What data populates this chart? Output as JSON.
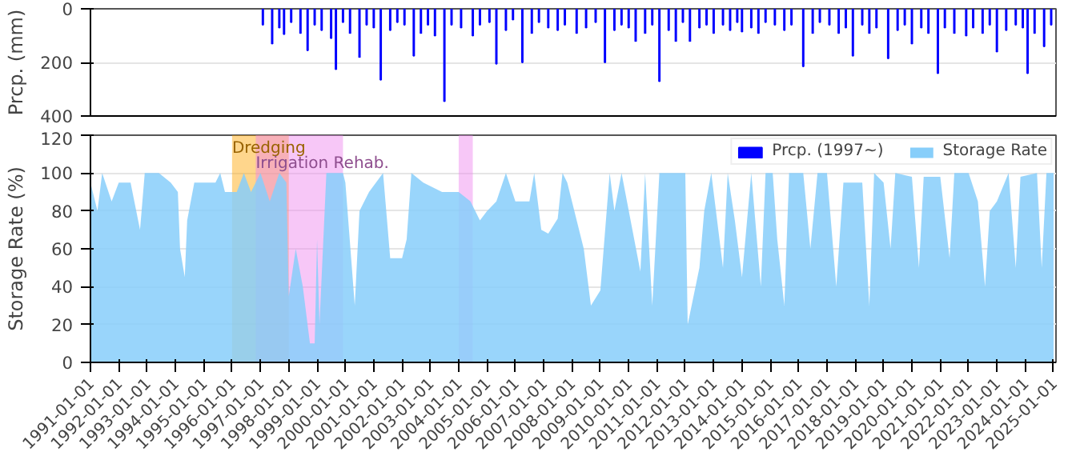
{
  "chart_data": [
    {
      "type": "bar",
      "ylabel": "Prcp. (mm)",
      "ylim": [
        400,
        0
      ],
      "yticks": [
        0,
        200,
        400
      ],
      "grid": "y",
      "tick_labels": "y",
      "xlim": [
        "1991-01-01",
        "2025-02-01"
      ],
      "series": [
        {
          "name": "Prcp. (1997~)",
          "color": "#0000ff",
          "x": [
            "1997-02",
            "1997-06",
            "1997-09",
            "1997-11",
            "1998-02",
            "1998-06",
            "1998-09",
            "1998-12",
            "1999-03",
            "1999-07",
            "1999-09",
            "1999-12",
            "2000-03",
            "2000-07",
            "2000-10",
            "2001-01",
            "2001-04",
            "2001-08",
            "2001-11",
            "2002-02",
            "2002-06",
            "2002-09",
            "2002-12",
            "2003-03",
            "2003-07",
            "2003-10",
            "2004-02",
            "2004-07",
            "2004-10",
            "2005-02",
            "2005-05",
            "2005-09",
            "2005-12",
            "2006-04",
            "2006-08",
            "2006-11",
            "2007-03",
            "2007-07",
            "2007-10",
            "2008-03",
            "2008-07",
            "2008-11",
            "2009-03",
            "2009-07",
            "2009-10",
            "2010-01",
            "2010-04",
            "2010-08",
            "2010-11",
            "2011-02",
            "2011-06",
            "2011-09",
            "2011-12",
            "2012-03",
            "2012-07",
            "2012-10",
            "2013-01",
            "2013-05",
            "2013-08",
            "2013-11",
            "2014-01",
            "2014-05",
            "2014-08",
            "2014-11",
            "2015-03",
            "2015-07",
            "2015-10",
            "2016-03",
            "2016-07",
            "2016-10",
            "2017-02",
            "2017-06",
            "2017-09",
            "2017-12",
            "2018-04",
            "2018-07",
            "2018-10",
            "2019-03",
            "2019-07",
            "2019-10",
            "2020-01",
            "2020-05",
            "2020-08",
            "2020-12",
            "2021-03",
            "2021-07",
            "2021-12",
            "2022-03",
            "2022-07",
            "2022-10",
            "2023-01",
            "2023-05",
            "2023-09",
            "2023-12",
            "2024-02",
            "2024-05",
            "2024-09",
            "2024-12"
          ],
          "values": [
            60,
            130,
            70,
            95,
            50,
            90,
            155,
            60,
            80,
            110,
            225,
            50,
            90,
            180,
            60,
            70,
            265,
            80,
            50,
            60,
            175,
            90,
            60,
            100,
            345,
            60,
            70,
            100,
            60,
            50,
            205,
            80,
            40,
            200,
            90,
            50,
            70,
            80,
            60,
            90,
            70,
            50,
            200,
            80,
            60,
            70,
            120,
            90,
            60,
            270,
            80,
            120,
            50,
            120,
            70,
            60,
            90,
            60,
            80,
            50,
            85,
            70,
            90,
            50,
            60,
            80,
            60,
            215,
            90,
            50,
            60,
            90,
            70,
            175,
            60,
            90,
            70,
            185,
            80,
            60,
            130,
            70,
            90,
            240,
            70,
            90,
            100,
            70,
            90,
            60,
            160,
            80,
            60,
            70,
            240,
            90,
            140,
            60
          ]
        }
      ]
    },
    {
      "type": "area",
      "ylabel": "Storage Rate (%)",
      "ylim": [
        0,
        120
      ],
      "yticks": [
        0,
        20,
        40,
        60,
        80,
        100,
        120
      ],
      "grid": "y",
      "legend": "top right",
      "xlim": [
        "1991-01-01",
        "2025-02-01"
      ],
      "xticks": [
        "1991-01-01",
        "1992-01-01",
        "1993-01-01",
        "1994-01-01",
        "1995-01-01",
        "1996-01-01",
        "1997-01-01",
        "1998-01-01",
        "1999-01-01",
        "2000-01-01",
        "2001-01-01",
        "2002-01-01",
        "2003-01-01",
        "2004-01-01",
        "2005-01-01",
        "2006-01-01",
        "2007-01-01",
        "2008-01-01",
        "2009-01-01",
        "2010-01-01",
        "2011-01-01",
        "2012-01-01",
        "2013-01-01",
        "2014-01-01",
        "2015-01-01",
        "2016-01-01",
        "2017-01-01",
        "2018-01-01",
        "2019-01-01",
        "2020-01-01",
        "2021-01-01",
        "2022-01-01",
        "2023-01-01",
        "2024-01-01",
        "2025-01-01"
      ],
      "bands": [
        {
          "axis": "x",
          "from": "1996-01-01",
          "to": "1998-01-01",
          "label": "Dredging",
          "color": "#ffa500"
        },
        {
          "axis": "x",
          "from": "1996-11-01",
          "to": "1999-12-01",
          "label": "Irrigation Rehab.",
          "color": "#ee82ee"
        },
        {
          "axis": "x",
          "from": "2004-01-01",
          "to": "2004-07-01",
          "color": "#ee82ee"
        }
      ],
      "series": [
        {
          "name": "Storage Rate",
          "color": "#87cefa",
          "x": [
            "1991-01",
            "1991-04",
            "1991-06",
            "1991-10",
            "1992-01",
            "1992-06",
            "1992-10",
            "1992-12",
            "1993-06",
            "1993-11",
            "1994-02",
            "1994-03",
            "1994-05",
            "1994-06",
            "1994-09",
            "1995-06",
            "1995-08",
            "1995-10",
            "1996-03",
            "1996-06",
            "1996-09",
            "1997-01",
            "1997-05",
            "1997-09",
            "1997-12",
            "1998-01",
            "1998-04",
            "1998-07",
            "1998-10",
            "1998-12",
            "1999-01",
            "1999-02",
            "1999-05",
            "1999-12",
            "2000-01",
            "2000-05",
            "2000-07",
            "2000-11",
            "2001-05",
            "2001-08",
            "2002-01",
            "2002-03",
            "2002-05",
            "2002-10",
            "2003-06",
            "2004-01",
            "2004-06",
            "2004-10",
            "2005-01",
            "2005-05",
            "2005-09",
            "2006-01",
            "2006-07",
            "2006-09",
            "2006-12",
            "2007-03",
            "2007-07",
            "2007-09",
            "2007-11",
            "2008-06",
            "2008-09",
            "2009-01",
            "2009-05",
            "2009-07",
            "2009-10",
            "2010-06",
            "2010-08",
            "2010-11",
            "2011-02",
            "2012-01",
            "2012-02",
            "2012-07",
            "2012-09",
            "2012-12",
            "2013-05",
            "2013-07",
            "2013-10",
            "2014-01",
            "2014-05",
            "2014-09",
            "2014-11",
            "2015-02",
            "2015-04",
            "2015-07",
            "2015-09",
            "2016-03",
            "2016-06",
            "2016-09",
            "2017-01",
            "2017-05",
            "2017-08",
            "2018-04",
            "2018-07",
            "2018-09",
            "2019-01",
            "2019-04",
            "2019-06",
            "2020-01",
            "2020-04",
            "2020-06",
            "2021-01",
            "2021-05",
            "2021-07",
            "2022-01",
            "2022-05",
            "2022-08",
            "2022-10",
            "2023-01",
            "2023-06",
            "2023-09",
            "2023-11",
            "2024-06",
            "2024-08",
            "2024-10",
            "2025-01"
          ],
          "values": [
            95,
            80,
            100,
            85,
            95,
            95,
            70,
            100,
            100,
            95,
            90,
            60,
            45,
            75,
            95,
            95,
            100,
            90,
            90,
            100,
            90,
            100,
            85,
            100,
            95,
            35,
            60,
            40,
            10,
            10,
            65,
            20,
            100,
            100,
            95,
            30,
            80,
            90,
            100,
            55,
            55,
            65,
            100,
            95,
            90,
            90,
            85,
            75,
            80,
            85,
            100,
            85,
            85,
            100,
            70,
            68,
            76,
            100,
            95,
            60,
            30,
            38,
            100,
            80,
            100,
            48,
            100,
            30,
            100,
            100,
            20,
            50,
            80,
            100,
            50,
            100,
            75,
            45,
            100,
            40,
            100,
            100,
            65,
            30,
            100,
            100,
            60,
            100,
            100,
            40,
            95,
            95,
            30,
            100,
            95,
            60,
            100,
            98,
            50,
            98,
            98,
            55,
            100,
            100,
            85,
            40,
            80,
            85,
            100,
            50,
            98,
            100,
            50,
            100,
            100
          ]
        }
      ]
    }
  ]
}
